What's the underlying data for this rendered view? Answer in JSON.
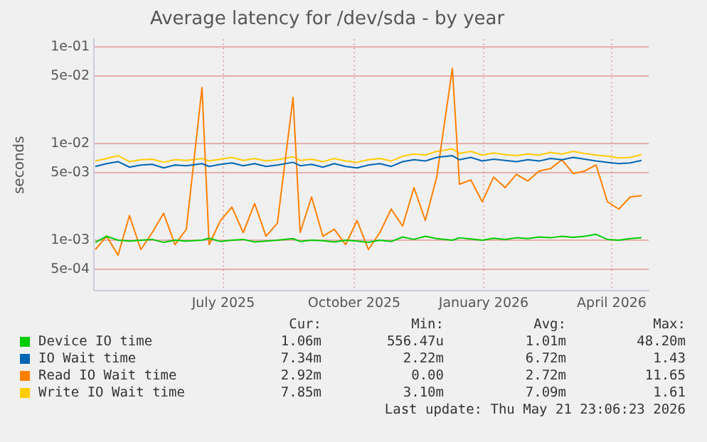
{
  "chart_data": {
    "type": "line",
    "title": "Average latency for /dev/sda - by year",
    "ylabel": "seconds",
    "x": [
      "2025-04-17",
      "2025-04-25",
      "2025-05-03",
      "2025-05-11",
      "2025-05-19",
      "2025-05-27",
      "2025-06-04",
      "2025-06-12",
      "2025-06-20",
      "2025-07-01",
      "2025-07-06",
      "2025-07-14",
      "2025-07-22",
      "2025-07-30",
      "2025-08-07",
      "2025-08-15",
      "2025-08-23",
      "2025-09-03",
      "2025-09-08",
      "2025-09-16",
      "2025-09-24",
      "2025-10-02",
      "2025-10-10",
      "2025-10-18",
      "2025-10-26",
      "2025-11-03",
      "2025-11-11",
      "2025-11-19",
      "2025-11-27",
      "2025-12-05",
      "2025-12-13",
      "2025-12-24",
      "2025-12-29",
      "2026-01-06",
      "2026-01-14",
      "2026-01-22",
      "2026-01-30",
      "2026-02-07",
      "2026-02-15",
      "2026-02-23",
      "2026-03-03",
      "2026-03-11",
      "2026-03-19",
      "2026-03-27",
      "2026-04-04",
      "2026-04-12",
      "2026-04-20",
      "2026-04-28",
      "2026-05-06"
    ],
    "series": [
      {
        "name": "Device IO time",
        "color": "#00cc00",
        "values": [
          0.00095,
          0.0011,
          0.001,
          0.00098,
          0.001,
          0.00102,
          0.00095,
          0.001,
          0.00098,
          0.001,
          0.00105,
          0.00097,
          0.001,
          0.00102,
          0.00096,
          0.00098,
          0.001,
          0.00104,
          0.00097,
          0.001,
          0.00099,
          0.00096,
          0.001,
          0.00098,
          0.00095,
          0.001,
          0.00097,
          0.00108,
          0.00102,
          0.0011,
          0.00104,
          0.001,
          0.00106,
          0.00103,
          0.001,
          0.00105,
          0.00102,
          0.00106,
          0.00104,
          0.00108,
          0.00106,
          0.0011,
          0.00107,
          0.0011,
          0.00115,
          0.00102,
          0.001,
          0.00104,
          0.00106
        ]
      },
      {
        "name": "IO Wait time",
        "color": "#0066b3",
        "values": [
          0.0058,
          0.0062,
          0.0065,
          0.0057,
          0.006,
          0.0061,
          0.0056,
          0.006,
          0.0059,
          0.0062,
          0.0058,
          0.0061,
          0.0063,
          0.0059,
          0.0062,
          0.0058,
          0.006,
          0.0064,
          0.0059,
          0.0061,
          0.0057,
          0.0062,
          0.0058,
          0.0056,
          0.006,
          0.0062,
          0.0058,
          0.0065,
          0.0068,
          0.0066,
          0.0072,
          0.0075,
          0.0068,
          0.0072,
          0.0066,
          0.0069,
          0.0067,
          0.0065,
          0.0068,
          0.0066,
          0.007,
          0.0068,
          0.0072,
          0.0069,
          0.0066,
          0.0064,
          0.0062,
          0.0063,
          0.0067
        ]
      },
      {
        "name": "Read IO Wait time",
        "color": "#ff8000",
        "values": [
          0.0008,
          0.0011,
          0.0007,
          0.0018,
          0.0008,
          0.0012,
          0.0019,
          0.0009,
          0.0013,
          0.038,
          0.0009,
          0.0016,
          0.0022,
          0.0012,
          0.0024,
          0.0011,
          0.0015,
          0.03,
          0.0012,
          0.0028,
          0.0011,
          0.0013,
          0.0009,
          0.0016,
          0.0008,
          0.0012,
          0.0021,
          0.0014,
          0.0035,
          0.0016,
          0.0045,
          0.06,
          0.0038,
          0.0042,
          0.0025,
          0.0045,
          0.0035,
          0.0048,
          0.0041,
          0.0052,
          0.0055,
          0.0068,
          0.0049,
          0.0052,
          0.006,
          0.0025,
          0.0021,
          0.0028,
          0.0029
        ]
      },
      {
        "name": "Write IO Wait time",
        "color": "#ffcc00",
        "values": [
          0.0066,
          0.007,
          0.0075,
          0.0065,
          0.0068,
          0.0069,
          0.0064,
          0.0068,
          0.0067,
          0.007,
          0.0066,
          0.0069,
          0.0072,
          0.0067,
          0.007,
          0.0066,
          0.0068,
          0.0073,
          0.0067,
          0.0069,
          0.0065,
          0.007,
          0.0066,
          0.0064,
          0.0068,
          0.007,
          0.0066,
          0.0074,
          0.0078,
          0.0076,
          0.0083,
          0.0088,
          0.0079,
          0.0083,
          0.0076,
          0.008,
          0.0077,
          0.0075,
          0.0078,
          0.0076,
          0.0081,
          0.0078,
          0.0083,
          0.0079,
          0.0076,
          0.0074,
          0.0071,
          0.0072,
          0.0077
        ]
      }
    ],
    "log": "y",
    "ylim": [
      0.0003,
      0.12
    ],
    "yticks": [
      {
        "value": 0.1,
        "label": "1e-01"
      },
      {
        "value": 0.05,
        "label": "5e-02"
      },
      {
        "value": 0.01,
        "label": "1e-02"
      },
      {
        "value": 0.005,
        "label": "5e-03"
      },
      {
        "value": 0.001,
        "label": "1e-03"
      },
      {
        "value": 0.0005,
        "label": "5e-04"
      }
    ],
    "xlim": [
      "2025-04-16",
      "2026-05-11"
    ],
    "xticks": [
      {
        "value": "2025-07-16",
        "label": "July 2025"
      },
      {
        "value": "2025-10-16",
        "label": "October 2025"
      },
      {
        "value": "2026-01-15",
        "label": "January 2026"
      },
      {
        "value": "2026-04-15",
        "label": "April 2026"
      }
    ],
    "grid": true,
    "legend": "bottom",
    "marker": "none",
    "annotations": [
      "Cur:",
      "Min:",
      "Avg:",
      "Max:",
      "1.06m",
      "556.47u",
      "1.01m",
      "48.20m",
      "7.34m",
      "2.22m",
      "6.72m",
      "1.43",
      "2.92m",
      "0.00",
      "2.72m",
      "11.65",
      "7.85m",
      "3.10m",
      "7.09m",
      "1.61",
      "Last update: Thu May 21 23:06:23 2026"
    ]
  }
}
